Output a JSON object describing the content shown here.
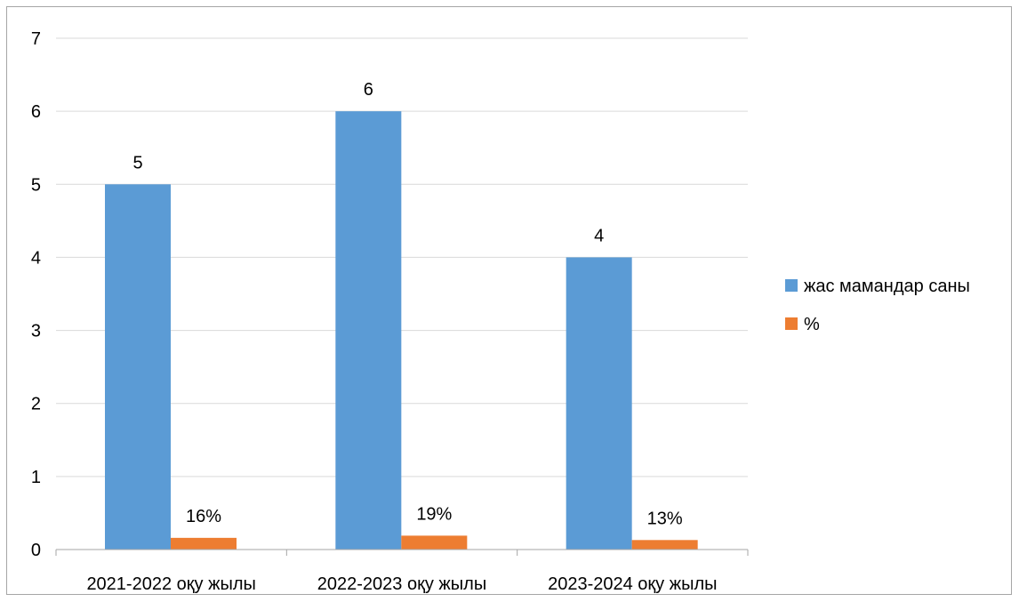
{
  "chart_data": {
    "type": "bar",
    "categories": [
      "2021-2022 оқу жылы",
      "2022-2023 оқу жылы",
      "2023-2024 оқу жылы"
    ],
    "series": [
      {
        "name": "жас мамандар саны",
        "values": [
          5,
          6,
          4
        ],
        "labels": [
          "5",
          "6",
          "4"
        ],
        "color": "#5b9bd5"
      },
      {
        "name": "%",
        "values": [
          0.16,
          0.19,
          0.13
        ],
        "labels": [
          "16%",
          "19%",
          "13%"
        ],
        "color": "#ed7d31"
      }
    ],
    "y_ticks": [
      "0",
      "1",
      "2",
      "3",
      "4",
      "5",
      "6",
      "7"
    ],
    "ylim": [
      0,
      7
    ],
    "grid": true,
    "legend_position": "right",
    "gridline_color": "#d9d9d9",
    "axis_color": "#a6a6a6"
  }
}
